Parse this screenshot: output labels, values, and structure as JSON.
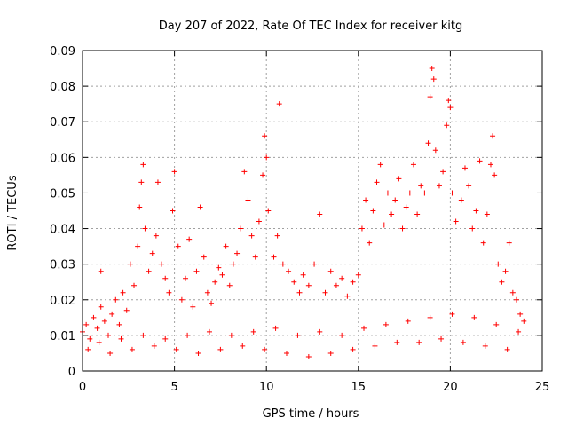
{
  "chart_data": {
    "type": "scatter",
    "title": "Day 207 of 2022, Rate Of TEC Index for receiver kitg",
    "xlabel": "GPS time / hours",
    "ylabel": "ROTI / TECUs",
    "xlim": [
      0,
      25
    ],
    "ylim": [
      0,
      0.09
    ],
    "x_ticks": [
      0,
      5,
      10,
      15,
      20,
      25
    ],
    "x_tick_labels": [
      "0",
      "5",
      "10",
      "15",
      "20",
      "25"
    ],
    "y_ticks": [
      0,
      0.01,
      0.02,
      0.03,
      0.04,
      0.05,
      0.06,
      0.07,
      0.08,
      0.09
    ],
    "y_tick_labels": [
      "0",
      "0.01",
      "0.02",
      "0.03",
      "0.04",
      "0.05",
      "0.06",
      "0.07",
      "0.08",
      "0.09"
    ],
    "grid": true,
    "marker": "+",
    "color": "#ff0000",
    "series": [
      {
        "name": "ROTI",
        "points": [
          [
            0.0,
            0.011
          ],
          [
            0.2,
            0.013
          ],
          [
            0.4,
            0.009
          ],
          [
            0.6,
            0.015
          ],
          [
            0.8,
            0.012
          ],
          [
            1.0,
            0.018
          ],
          [
            1.0,
            0.028
          ],
          [
            1.2,
            0.014
          ],
          [
            1.4,
            0.01
          ],
          [
            1.6,
            0.016
          ],
          [
            1.8,
            0.02
          ],
          [
            2.0,
            0.013
          ],
          [
            2.2,
            0.022
          ],
          [
            2.4,
            0.017
          ],
          [
            2.6,
            0.03
          ],
          [
            2.8,
            0.024
          ],
          [
            3.0,
            0.035
          ],
          [
            3.1,
            0.046
          ],
          [
            3.2,
            0.053
          ],
          [
            3.3,
            0.058
          ],
          [
            3.4,
            0.04
          ],
          [
            3.6,
            0.028
          ],
          [
            3.8,
            0.033
          ],
          [
            4.0,
            0.038
          ],
          [
            4.1,
            0.053
          ],
          [
            4.3,
            0.03
          ],
          [
            4.5,
            0.026
          ],
          [
            4.7,
            0.022
          ],
          [
            4.9,
            0.045
          ],
          [
            5.0,
            0.056
          ],
          [
            5.2,
            0.035
          ],
          [
            5.4,
            0.02
          ],
          [
            5.6,
            0.026
          ],
          [
            5.8,
            0.037
          ],
          [
            6.0,
            0.018
          ],
          [
            6.2,
            0.028
          ],
          [
            6.4,
            0.046
          ],
          [
            6.6,
            0.032
          ],
          [
            6.8,
            0.022
          ],
          [
            7.0,
            0.019
          ],
          [
            7.2,
            0.025
          ],
          [
            7.4,
            0.029
          ],
          [
            7.6,
            0.027
          ],
          [
            7.8,
            0.035
          ],
          [
            8.0,
            0.024
          ],
          [
            8.2,
            0.03
          ],
          [
            8.4,
            0.033
          ],
          [
            8.6,
            0.04
          ],
          [
            8.8,
            0.056
          ],
          [
            9.0,
            0.048
          ],
          [
            9.2,
            0.038
          ],
          [
            9.4,
            0.032
          ],
          [
            9.6,
            0.042
          ],
          [
            9.8,
            0.055
          ],
          [
            9.9,
            0.066
          ],
          [
            10.0,
            0.06
          ],
          [
            10.1,
            0.045
          ],
          [
            10.4,
            0.032
          ],
          [
            10.6,
            0.038
          ],
          [
            10.7,
            0.075
          ],
          [
            10.9,
            0.03
          ],
          [
            11.2,
            0.028
          ],
          [
            11.5,
            0.025
          ],
          [
            11.8,
            0.022
          ],
          [
            12.0,
            0.027
          ],
          [
            12.3,
            0.024
          ],
          [
            12.6,
            0.03
          ],
          [
            12.9,
            0.044
          ],
          [
            13.2,
            0.022
          ],
          [
            13.5,
            0.028
          ],
          [
            13.8,
            0.024
          ],
          [
            14.1,
            0.026
          ],
          [
            14.4,
            0.021
          ],
          [
            14.7,
            0.025
          ],
          [
            15.0,
            0.027
          ],
          [
            15.2,
            0.04
          ],
          [
            15.4,
            0.048
          ],
          [
            15.6,
            0.036
          ],
          [
            15.8,
            0.045
          ],
          [
            16.0,
            0.053
          ],
          [
            16.2,
            0.058
          ],
          [
            16.4,
            0.041
          ],
          [
            16.6,
            0.05
          ],
          [
            16.8,
            0.044
          ],
          [
            17.0,
            0.048
          ],
          [
            17.2,
            0.054
          ],
          [
            17.4,
            0.04
          ],
          [
            17.6,
            0.046
          ],
          [
            17.8,
            0.05
          ],
          [
            18.0,
            0.058
          ],
          [
            18.2,
            0.044
          ],
          [
            18.4,
            0.052
          ],
          [
            18.6,
            0.05
          ],
          [
            18.8,
            0.064
          ],
          [
            18.9,
            0.077
          ],
          [
            19.0,
            0.085
          ],
          [
            19.1,
            0.082
          ],
          [
            19.2,
            0.062
          ],
          [
            19.4,
            0.052
          ],
          [
            19.6,
            0.056
          ],
          [
            19.8,
            0.069
          ],
          [
            19.9,
            0.076
          ],
          [
            20.0,
            0.074
          ],
          [
            20.1,
            0.05
          ],
          [
            20.3,
            0.042
          ],
          [
            20.6,
            0.048
          ],
          [
            20.8,
            0.057
          ],
          [
            21.0,
            0.052
          ],
          [
            21.2,
            0.04
          ],
          [
            21.4,
            0.045
          ],
          [
            21.6,
            0.059
          ],
          [
            21.8,
            0.036
          ],
          [
            22.0,
            0.044
          ],
          [
            22.2,
            0.058
          ],
          [
            22.3,
            0.066
          ],
          [
            22.4,
            0.055
          ],
          [
            22.6,
            0.03
          ],
          [
            22.8,
            0.025
          ],
          [
            23.0,
            0.028
          ],
          [
            23.2,
            0.036
          ],
          [
            23.4,
            0.022
          ],
          [
            23.6,
            0.02
          ],
          [
            23.8,
            0.016
          ],
          [
            24.0,
            0.014
          ],
          [
            0.3,
            0.006
          ],
          [
            1.5,
            0.005
          ],
          [
            2.7,
            0.006
          ],
          [
            3.9,
            0.007
          ],
          [
            5.1,
            0.006
          ],
          [
            6.3,
            0.005
          ],
          [
            7.5,
            0.006
          ],
          [
            8.7,
            0.007
          ],
          [
            9.9,
            0.006
          ],
          [
            11.1,
            0.005
          ],
          [
            12.3,
            0.004
          ],
          [
            13.5,
            0.005
          ],
          [
            14.7,
            0.006
          ],
          [
            15.9,
            0.007
          ],
          [
            17.1,
            0.008
          ],
          [
            18.3,
            0.008
          ],
          [
            19.5,
            0.009
          ],
          [
            20.7,
            0.008
          ],
          [
            21.9,
            0.007
          ],
          [
            23.1,
            0.006
          ],
          [
            0.9,
            0.008
          ],
          [
            2.1,
            0.009
          ],
          [
            3.3,
            0.01
          ],
          [
            4.5,
            0.009
          ],
          [
            5.7,
            0.01
          ],
          [
            6.9,
            0.011
          ],
          [
            8.1,
            0.01
          ],
          [
            9.3,
            0.011
          ],
          [
            10.5,
            0.012
          ],
          [
            11.7,
            0.01
          ],
          [
            12.9,
            0.011
          ],
          [
            14.1,
            0.01
          ],
          [
            15.3,
            0.012
          ],
          [
            16.5,
            0.013
          ],
          [
            17.7,
            0.014
          ],
          [
            18.9,
            0.015
          ],
          [
            20.1,
            0.016
          ],
          [
            21.3,
            0.015
          ],
          [
            22.5,
            0.013
          ],
          [
            23.7,
            0.011
          ]
        ]
      }
    ]
  }
}
